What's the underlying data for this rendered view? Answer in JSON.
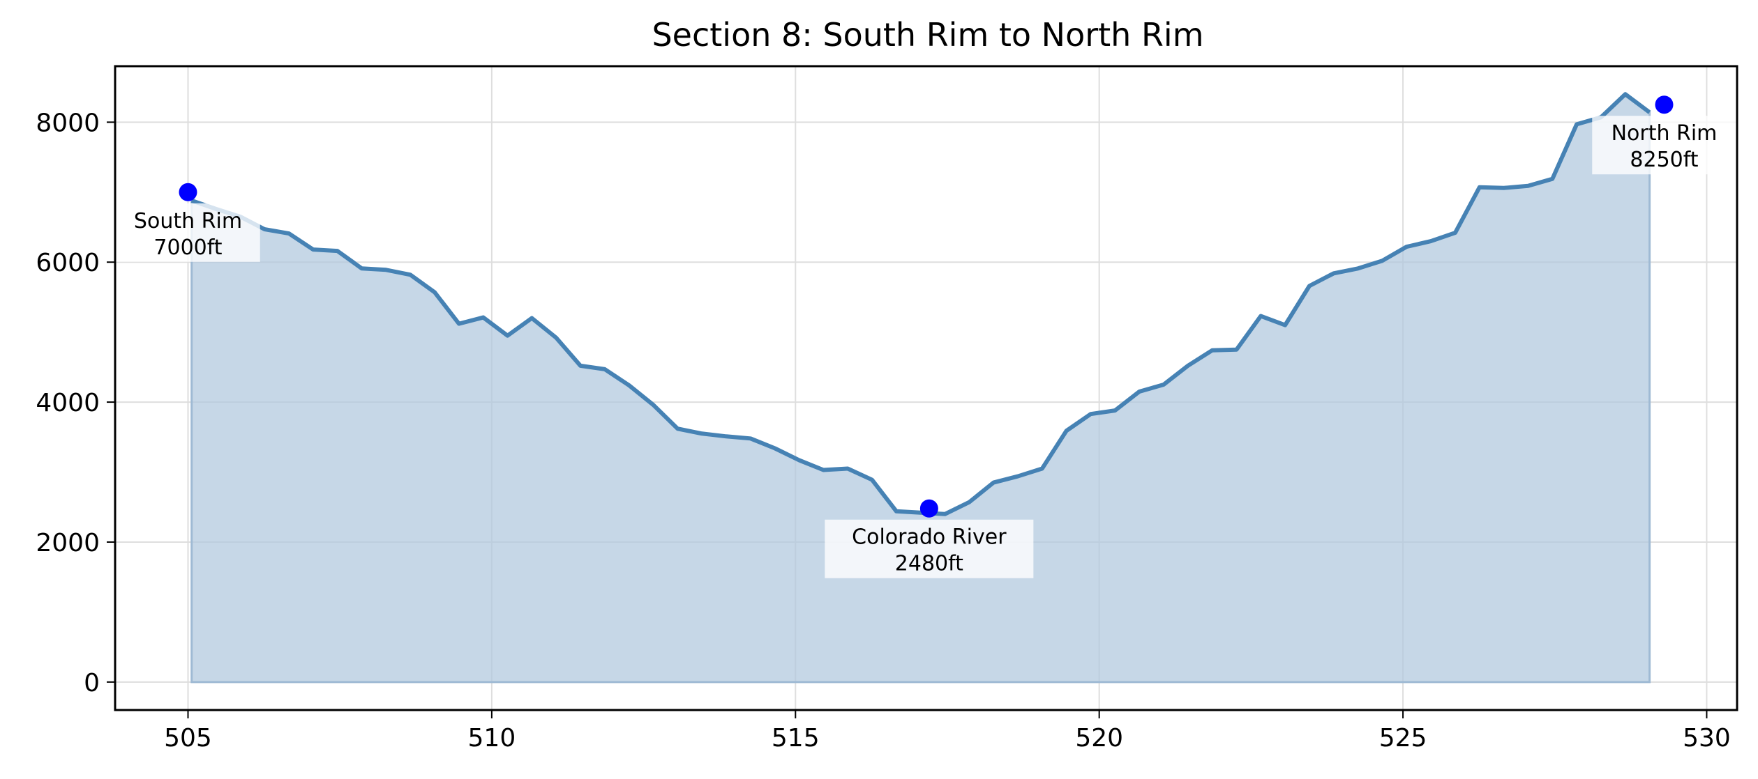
{
  "chart_data": {
    "type": "area",
    "title": "Section 8: South Rim to North Rim",
    "xlabel": "",
    "ylabel": "",
    "xlim": [
      503.8,
      530.5
    ],
    "ylim": [
      -400,
      8800
    ],
    "grid": true,
    "legend": "none",
    "x_ticks": [
      505,
      510,
      515,
      520,
      525,
      530
    ],
    "y_ticks": [
      0,
      2000,
      4000,
      6000,
      8000
    ],
    "x_tick_labels": [
      "505",
      "510",
      "515",
      "520",
      "525",
      "530"
    ],
    "y_tick_labels": [
      "0",
      "2000",
      "4000",
      "6000",
      "8000"
    ],
    "colors": {
      "line": "#4682b4",
      "fill": "#b0c8de",
      "marker": "#0000ff",
      "grid": "#dedede"
    },
    "series": [
      {
        "x": [
          505.06,
          505.46,
          505.86,
          506.26,
          506.66,
          507.06,
          507.46,
          507.86,
          508.26,
          508.66,
          509.06,
          509.46,
          509.86,
          510.26,
          510.66,
          511.06,
          511.46,
          511.86,
          512.26,
          512.66,
          513.06,
          513.46,
          513.86,
          514.26,
          514.66,
          515.06,
          515.46,
          515.86,
          516.26,
          516.66,
          517.06,
          517.46,
          517.86,
          518.26,
          518.66,
          519.06,
          519.46,
          519.86,
          520.26,
          520.66,
          521.06,
          521.46,
          521.86,
          522.26,
          522.66,
          523.06,
          523.46,
          523.86,
          524.26,
          524.66,
          525.06,
          525.46,
          525.86,
          526.26,
          526.66,
          527.06,
          527.46,
          527.86,
          528.26,
          528.66,
          529.06
        ],
        "y": [
          6880,
          6760,
          6650,
          6470,
          6410,
          6180,
          6160,
          5910,
          5890,
          5820,
          5570,
          5120,
          5210,
          4950,
          5200,
          4920,
          4520,
          4470,
          4240,
          3960,
          3620,
          3550,
          3510,
          3480,
          3340,
          3170,
          3030,
          3050,
          2890,
          2440,
          2420,
          2400,
          2570,
          2850,
          2940,
          3050,
          3590,
          3830,
          3880,
          4150,
          4250,
          4520,
          4740,
          4750,
          5230,
          5100,
          5660,
          5840,
          5910,
          6020,
          6220,
          6300,
          6420,
          7070,
          7060,
          7090,
          7190,
          7970,
          8070,
          8400,
          8140
        ]
      }
    ],
    "annotations": [
      {
        "x": 505.0,
        "y": 7000,
        "label": "South Rim\n7000ft",
        "line1": "South Rim",
        "line2": "7000ft",
        "anchor": "below"
      },
      {
        "x": 517.2,
        "y": 2480,
        "label": "Colorado River\n2480ft",
        "line1": "Colorado River",
        "line2": "2480ft",
        "anchor": "below"
      },
      {
        "x": 529.3,
        "y": 8250,
        "label": "North Rim\n8250ft",
        "line1": "North Rim",
        "line2": "8250ft",
        "anchor": "below"
      }
    ]
  }
}
